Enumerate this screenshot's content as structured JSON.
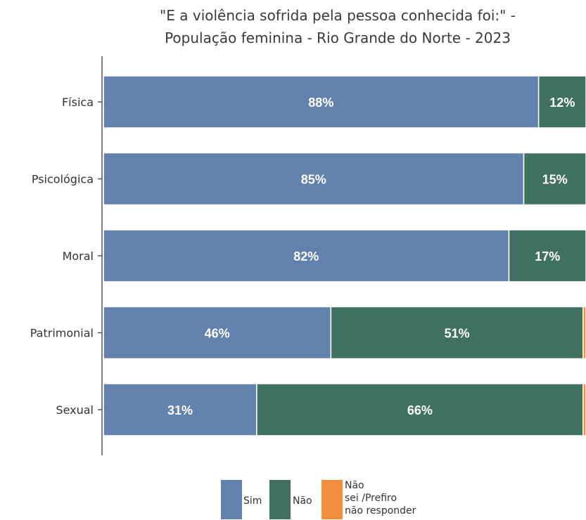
{
  "chart_data": {
    "type": "bar",
    "orientation": "horizontal",
    "stacked": true,
    "title_lines": [
      "\"E a violência sofrida pela pessoa conhecida foi:\" -",
      "População feminina - Rio Grande do Norte - 2023"
    ],
    "categories": [
      "Física",
      "Psicológica",
      "Moral",
      "Patrimonial",
      "Sexual"
    ],
    "series": [
      {
        "name": "Sim",
        "color": "#6281ad",
        "values": [
          88,
          85,
          82,
          46,
          31
        ],
        "labels": [
          "88%",
          "85%",
          "82%",
          "46%",
          "31%"
        ]
      },
      {
        "name": "Não",
        "color": "#3f7060",
        "values": [
          12,
          15,
          17,
          51,
          66
        ],
        "labels": [
          "12%",
          "15%",
          "17%",
          "51%",
          "66%"
        ]
      },
      {
        "name": "Não sei /Prefiro não responder",
        "color": "#f28e3c",
        "values": [
          0,
          0,
          0,
          3,
          3
        ],
        "labels": [
          "",
          "",
          "",
          "",
          ""
        ]
      }
    ],
    "xlim": [
      0,
      100
    ],
    "grid": false,
    "legend_position": "bottom"
  },
  "legend": {
    "sim": "Sim",
    "nao": "Não",
    "nsnr_lines": [
      "Não",
      "sei /Prefiro",
      "não responder"
    ]
  }
}
